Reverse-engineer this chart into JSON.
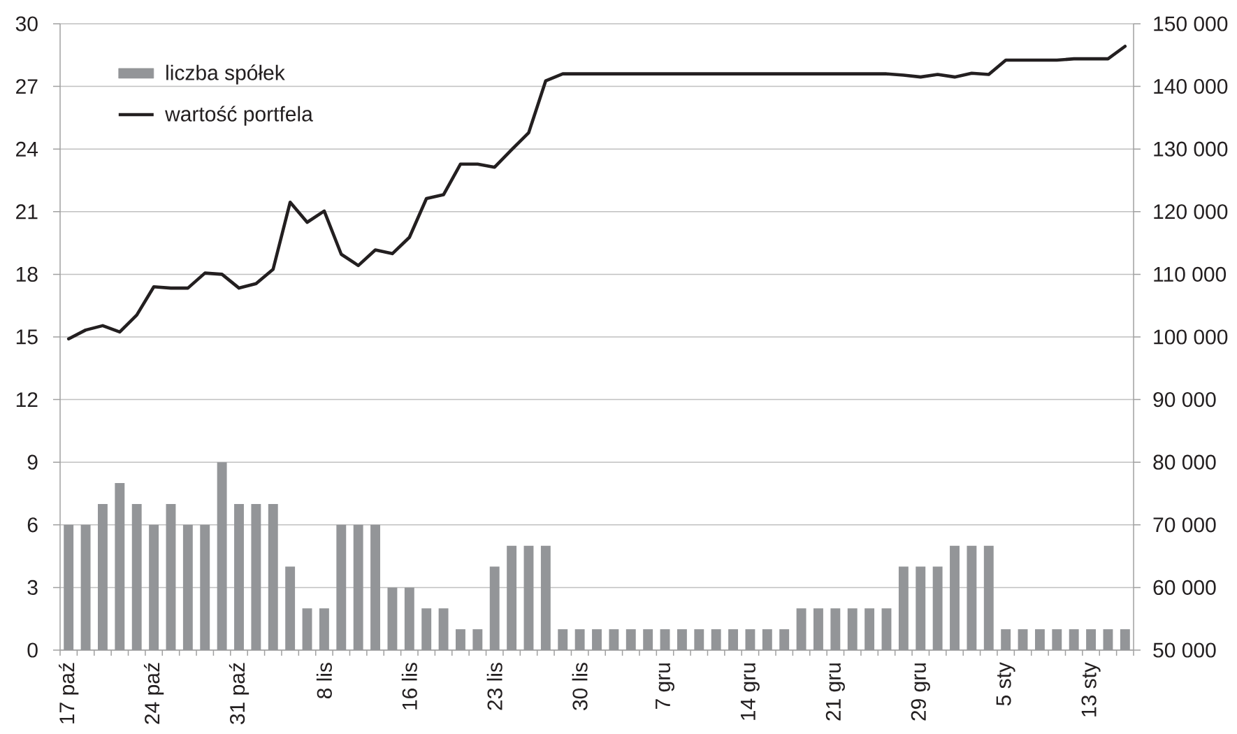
{
  "chart_data": {
    "type": "bar",
    "categories": [
      "17 paź",
      null,
      null,
      null,
      null,
      "24 paź",
      null,
      null,
      null,
      null,
      "31 paź",
      null,
      null,
      null,
      null,
      "8 lis",
      null,
      null,
      null,
      null,
      "16 lis",
      null,
      null,
      null,
      null,
      "23 lis",
      null,
      null,
      null,
      null,
      "30 lis",
      null,
      null,
      null,
      null,
      "7 gru",
      null,
      null,
      null,
      null,
      "14 gru",
      null,
      null,
      null,
      null,
      "21 gru",
      null,
      null,
      null,
      null,
      "29 gru",
      null,
      null,
      null,
      null,
      "5 sty",
      null,
      null,
      null,
      null,
      "13 sty",
      null,
      null
    ],
    "series": [
      {
        "name": "liczba spółek",
        "color": "#939598",
        "values": [
          6,
          6,
          7,
          8,
          7,
          6,
          7,
          6,
          6,
          9,
          7,
          7,
          7,
          4,
          2,
          2,
          6,
          6,
          6,
          3,
          3,
          2,
          2,
          1,
          1,
          4,
          5,
          5,
          5,
          1,
          1,
          1,
          1,
          1,
          1,
          1,
          1,
          1,
          1,
          1,
          1,
          1,
          1,
          2,
          2,
          2,
          2,
          2,
          2,
          4,
          4,
          4,
          5,
          5,
          5,
          1,
          1,
          1,
          1,
          1,
          1,
          1,
          1
        ]
      },
      {
        "name": "wartość portfela",
        "type": "line",
        "axis": "y2",
        "color": "#231f20",
        "values": [
          99700,
          101100,
          101800,
          100800,
          103500,
          108000,
          107800,
          107800,
          110200,
          110000,
          107800,
          108500,
          110800,
          121500,
          118300,
          120100,
          113200,
          111400,
          113900,
          113300,
          115900,
          122100,
          122700,
          127600,
          127600,
          127100,
          129900,
          132600,
          140900,
          142000,
          142000,
          142000,
          142000,
          142000,
          142000,
          142000,
          142000,
          142000,
          142000,
          142000,
          142000,
          142000,
          142000,
          142000,
          142000,
          142000,
          142000,
          142000,
          142000,
          141800,
          141500,
          141900,
          141500,
          142100,
          141900,
          144200,
          144200,
          144200,
          144200,
          144400,
          144400,
          144400,
          146400
        ]
      }
    ],
    "ylim": [
      0,
      30
    ],
    "yticks": [
      0,
      3,
      6,
      9,
      12,
      15,
      18,
      21,
      24,
      27,
      30
    ],
    "y2lim": [
      50000,
      150000
    ],
    "y2ticks": [
      {
        "value": 50000,
        "label": "50 000"
      },
      {
        "value": 60000,
        "label": "60 000"
      },
      {
        "value": 70000,
        "label": "70 000"
      },
      {
        "value": 80000,
        "label": "80 000"
      },
      {
        "value": 90000,
        "label": "90 000"
      },
      {
        "value": 100000,
        "label": "100 000"
      },
      {
        "value": 110000,
        "label": "110 000"
      },
      {
        "value": 120000,
        "label": "120 000"
      },
      {
        "value": 130000,
        "label": "130 000"
      },
      {
        "value": 140000,
        "label": "140 000"
      },
      {
        "value": 150000,
        "label": "150 000"
      }
    ],
    "grid": "y",
    "legend": "top left"
  }
}
